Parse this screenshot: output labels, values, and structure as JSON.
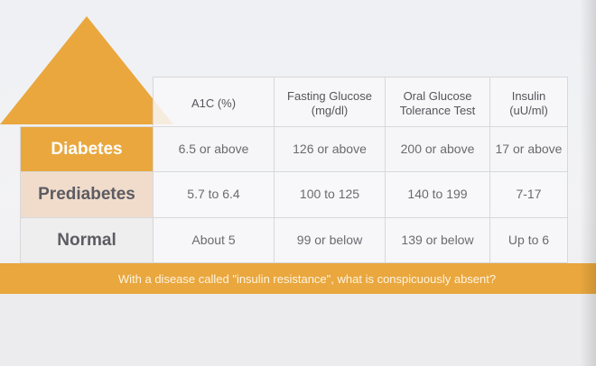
{
  "table": {
    "headers": {
      "a1c": [
        "A1C (%)"
      ],
      "fasting": [
        "Fasting Glucose",
        "(mg/dl)"
      ],
      "ogtt": [
        "Oral Glucose",
        "Tolerance Test"
      ],
      "insulin": [
        "Insulin",
        "(uU/ml)"
      ]
    },
    "rows": [
      {
        "label": "Diabetes",
        "a1c": "6.5 or above",
        "fasting": "126 or above",
        "ogtt": "200 or above",
        "insulin": "17 or above"
      },
      {
        "label": "Prediabetes",
        "a1c": "5.7 to 6.4",
        "fasting": "100 to 125",
        "ogtt": "140 to 199",
        "insulin": "7-17"
      },
      {
        "label": "Normal",
        "a1c": "About 5",
        "fasting": "99 or below",
        "ogtt": "139 or below",
        "insulin": "Up to 6"
      }
    ]
  },
  "banner": {
    "text": "With a disease called \"insulin resistance\", what is conspicuously absent?"
  },
  "colors": {
    "accent": "#e9a73e",
    "prediabetes": "#f1dccc",
    "normal": "#eeeeef"
  }
}
